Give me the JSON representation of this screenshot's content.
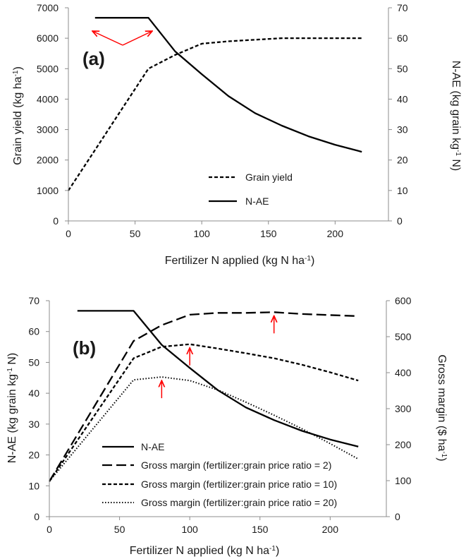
{
  "chart_data": [
    {
      "type": "line",
      "panel_label": "(a)",
      "xlabel": "Fertilizer N applied (kg N ha",
      "xlabel_sup": "-1",
      "xlabel_end": ")",
      "ylabel_left": "Grain yield (kg ha",
      "ylabel_left_sup": "-1",
      "ylabel_left_end": ")",
      "ylabel_right": "N-AE (kg grain kg",
      "ylabel_right_sup": "-1",
      "ylabel_right_end": " N)",
      "xlim": [
        0,
        240
      ],
      "ylim_left": [
        0,
        7000
      ],
      "ylim_right": [
        0,
        70
      ],
      "x_ticks": [
        "0",
        "50",
        "100",
        "150",
        "200"
      ],
      "y_left_ticks": [
        "0",
        "1000",
        "2000",
        "3000",
        "4000",
        "5000",
        "6000",
        "7000"
      ],
      "y_right_ticks": [
        "0",
        "10",
        "20",
        "30",
        "40",
        "50",
        "60",
        "70"
      ],
      "series": [
        {
          "name": "Grain yield",
          "style": "dashed",
          "axis": "left",
          "x": [
            0,
            20,
            40,
            60,
            80,
            100,
            120,
            140,
            160,
            180,
            200,
            220
          ],
          "y": [
            1000,
            2330,
            3670,
            5000,
            5450,
            5820,
            5900,
            5950,
            6000,
            6000,
            6000,
            6000
          ]
        },
        {
          "name": "N-AE",
          "style": "solid",
          "axis": "right",
          "x": [
            20,
            60,
            80,
            100,
            120,
            140,
            160,
            180,
            200,
            220
          ],
          "y": [
            66.7,
            66.7,
            55.7,
            48.2,
            41.0,
            35.4,
            31.3,
            27.8,
            25.0,
            22.7
          ]
        }
      ],
      "legend_position": "center-right",
      "annotation": "red arrows pointing to the ends of the N-AE plateau"
    },
    {
      "type": "line",
      "panel_label": "(b)",
      "xlabel": "Fertilizer N applied (kg N ha",
      "xlabel_sup": "-1",
      "xlabel_end": ")",
      "ylabel_left": "N-AE (kg grain kg",
      "ylabel_left_sup": "-1",
      "ylabel_left_end": " N)",
      "ylabel_right": "Gross margin ($ ha",
      "ylabel_right_sup": "-1",
      "ylabel_right_end": ")",
      "xlim": [
        0,
        240
      ],
      "ylim_left": [
        0,
        70
      ],
      "ylim_right": [
        0,
        600
      ],
      "x_ticks": [
        "0",
        "50",
        "100",
        "150",
        "200"
      ],
      "y_left_ticks": [
        "0",
        "10",
        "20",
        "30",
        "40",
        "50",
        "60",
        "70"
      ],
      "y_right_ticks": [
        "0",
        "100",
        "200",
        "300",
        "400",
        "500",
        "600"
      ],
      "series": [
        {
          "name": "N-AE",
          "style": "solid",
          "axis": "left",
          "x": [
            20,
            60,
            80,
            100,
            120,
            140,
            160,
            180,
            200,
            220
          ],
          "y": [
            66.7,
            66.7,
            55.7,
            48.2,
            41.0,
            35.4,
            31.3,
            27.8,
            25.0,
            22.7
          ]
        },
        {
          "name": "Gross margin (fertilizer:grain price ratio = 2)",
          "style": "longdash",
          "axis": "right",
          "x": [
            0,
            60,
            80,
            100,
            120,
            140,
            160,
            180,
            200,
            220
          ],
          "y": [
            98,
            488,
            532,
            561,
            566,
            566,
            568,
            563,
            560,
            557
          ]
        },
        {
          "name": "Gross margin (fertilizer:grain price ratio = 10)",
          "style": "dashed",
          "axis": "right",
          "x": [
            0,
            60,
            80,
            100,
            120,
            140,
            160,
            180,
            200,
            220
          ],
          "y": [
            98,
            440,
            472,
            479,
            467,
            454,
            440,
            422,
            401,
            378
          ]
        },
        {
          "name": "Gross margin (fertilizer:grain price ratio = 20)",
          "style": "dotted",
          "axis": "right",
          "x": [
            0,
            60,
            80,
            100,
            120,
            140,
            160,
            180,
            200,
            220
          ],
          "y": [
            98,
            380,
            388,
            378,
            352,
            318,
            282,
            244,
            203,
            160
          ]
        }
      ],
      "legend_position": "bottom-center",
      "annotation": "red arrows marking the maximum of each gross margin curve",
      "arrow_points": [
        {
          "x": 80,
          "y": 388
        },
        {
          "x": 100,
          "y": 479
        },
        {
          "x": 160,
          "y": 568
        }
      ]
    }
  ],
  "colors": {
    "line": "#000000",
    "arrow": "#ff0000",
    "axis": "#8c8c8c",
    "text": "#1a1a1a"
  }
}
